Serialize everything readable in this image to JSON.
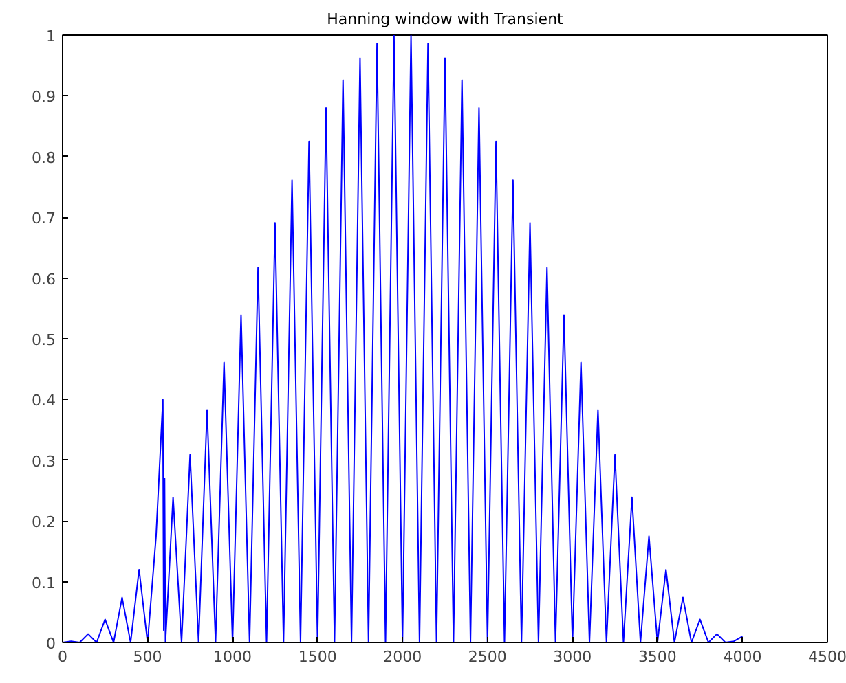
{
  "chart_data": {
    "type": "line",
    "title": "Hanning window with Transient",
    "x": [
      0,
      50,
      100,
      150,
      200,
      250,
      300,
      350,
      400,
      450,
      500,
      550,
      590,
      595,
      600,
      605,
      650,
      700,
      750,
      800,
      850,
      900,
      950,
      1000,
      1050,
      1100,
      1150,
      1200,
      1250,
      1300,
      1350,
      1400,
      1450,
      1500,
      1550,
      1600,
      1650,
      1700,
      1750,
      1800,
      1850,
      1900,
      1950,
      2000,
      2050,
      2100,
      2150,
      2200,
      2250,
      2300,
      2350,
      2400,
      2450,
      2500,
      2550,
      2600,
      2650,
      2700,
      2750,
      2800,
      2850,
      2900,
      2950,
      3000,
      3050,
      3100,
      3150,
      3200,
      3250,
      3300,
      3350,
      3400,
      3450,
      3500,
      3550,
      3600,
      3650,
      3700,
      3750,
      3800,
      3850,
      3900,
      3950,
      4000
    ],
    "series": [
      {
        "color": "#0000ff",
        "values": [
          0,
          0.002,
          0,
          0.014,
          0,
          0.038,
          0,
          0.074,
          0,
          0.12,
          0,
          0.175,
          0.4,
          0.02,
          0.27,
          0,
          0.239,
          0,
          0.309,
          0,
          0.383,
          0,
          0.461,
          0,
          0.539,
          0,
          0.617,
          0,
          0.691,
          0,
          0.761,
          0,
          0.825,
          0,
          0.88,
          0,
          0.926,
          0,
          0.962,
          0,
          0.986,
          0,
          0.999,
          0,
          0.999,
          0,
          0.986,
          0,
          0.962,
          0,
          0.926,
          0,
          0.88,
          0,
          0.825,
          0,
          0.761,
          0,
          0.691,
          0,
          0.617,
          0,
          0.539,
          0,
          0.461,
          0,
          0.383,
          0,
          0.309,
          0,
          0.239,
          0,
          0.175,
          0,
          0.12,
          0,
          0.074,
          0,
          0.038,
          0,
          0.014,
          0,
          0.002,
          0.01
        ]
      }
    ],
    "xlim": [
      0,
      4500
    ],
    "xticks": [
      0,
      500,
      1000,
      1500,
      2000,
      2500,
      3000,
      3500,
      4000,
      4500
    ],
    "ylim": [
      0,
      1
    ],
    "yticks": [
      0,
      0.1,
      0.2,
      0.3,
      0.4,
      0.5,
      0.6,
      0.7,
      0.8,
      0.9,
      1
    ],
    "grid": false
  }
}
